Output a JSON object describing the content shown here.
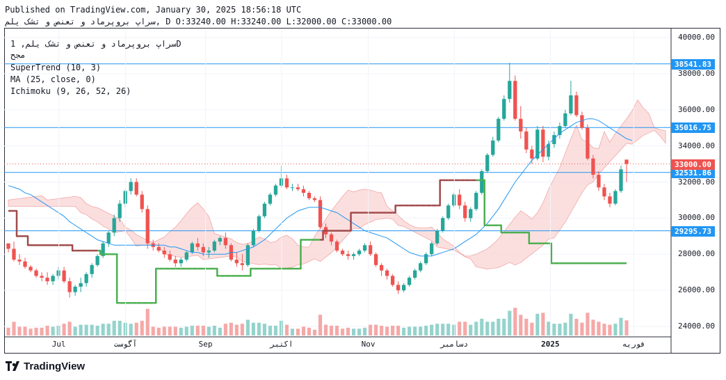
{
  "header": {
    "published": "Published on TradingView.com, January 30, 2025 18:56:18 UTC",
    "symbol_line": "سراپ بروپرماد و تعنص و تشک یلم, D O:33240.00 H:33240.00 L:32000.00 C:33000.00"
  },
  "legend": {
    "symbol": "سراپ بروپرماد و تعنص و تشک یلم, 1D",
    "exchange": "مجح",
    "supertrend": "SuperTrend (10, 3)",
    "ma": "MA (25, close, 0)",
    "ichimoku": "Ichimoku (9, 26, 52, 26)"
  },
  "brand": "TradingView",
  "colors": {
    "up": "#26a69a",
    "down": "#ef5350",
    "supertrend_up": "#4caf50",
    "supertrend_down": "#a04a4a",
    "ma": "#2196f3",
    "hline": "#2196f3",
    "last_price": "#ef5350",
    "cloud_bull": "#d7efd7",
    "cloud_bear": "#f9d4d4"
  },
  "chart_data": {
    "type": "candlestick",
    "ylim": [
      23500,
      40500
    ],
    "y_ticks": [
      "24000.00",
      "26000.00",
      "28000.00",
      "30000.00",
      "32000.00",
      "34000.00",
      "36000.00",
      "38000.00",
      "40000.00"
    ],
    "x_ticks": [
      {
        "label": "Jul",
        "pos": 0.082,
        "bold": false
      },
      {
        "label": "آگوست",
        "pos": 0.182,
        "bold": false
      },
      {
        "label": "Sep",
        "pos": 0.302,
        "bold": false
      },
      {
        "label": "اکتبر",
        "pos": 0.416,
        "bold": false
      },
      {
        "label": "Nov",
        "pos": 0.546,
        "bold": false
      },
      {
        "label": "دسامبر",
        "pos": 0.675,
        "bold": false
      },
      {
        "label": "2025",
        "pos": 0.819,
        "bold": true
      },
      {
        "label": "فوریه",
        "pos": 0.944,
        "bold": false
      }
    ],
    "horizontal_levels": [
      38541.83,
      35016.75,
      32531.86,
      29295.73
    ],
    "horizontal_level_labels": [
      "38541.83",
      "35016.75",
      "32531.86",
      "29295.73"
    ],
    "last_price": 33000.0,
    "last_price_label": "33000.00",
    "candles": [
      [
        28600,
        28600,
        28100,
        28300
      ],
      [
        28300,
        28700,
        27600,
        27700
      ],
      [
        27700,
        28000,
        27400,
        27600
      ],
      [
        27600,
        27800,
        27200,
        27300
      ],
      [
        27300,
        27400,
        27000,
        27100
      ],
      [
        27100,
        27200,
        26700,
        26800
      ],
      [
        26800,
        27000,
        26500,
        26700
      ],
      [
        26700,
        27000,
        26300,
        26500
      ],
      [
        26500,
        26900,
        26300,
        26800
      ],
      [
        26800,
        27300,
        26600,
        27100
      ],
      [
        27100,
        27300,
        26400,
        26500
      ],
      [
        26500,
        26700,
        25600,
        25900
      ],
      [
        25900,
        26300,
        25700,
        26200
      ],
      [
        26200,
        26700,
        25900,
        26400
      ],
      [
        26400,
        27000,
        26200,
        26900
      ],
      [
        26900,
        27500,
        26700,
        27400
      ],
      [
        27400,
        28000,
        27300,
        27900
      ],
      [
        27900,
        28700,
        27800,
        28600
      ],
      [
        28600,
        29300,
        28400,
        29200
      ],
      [
        29200,
        30200,
        29000,
        30000
      ],
      [
        30000,
        31000,
        29800,
        30800
      ],
      [
        30800,
        31600,
        30600,
        31500
      ],
      [
        31500,
        32200,
        31300,
        32000
      ],
      [
        32000,
        32200,
        31200,
        31300
      ],
      [
        31300,
        31500,
        30300,
        30500
      ],
      [
        30500,
        30700,
        28300,
        28600
      ],
      [
        28600,
        28800,
        28200,
        28400
      ],
      [
        28400,
        28600,
        28100,
        28200
      ],
      [
        28200,
        28400,
        27800,
        28000
      ],
      [
        28000,
        28200,
        27600,
        27700
      ],
      [
        27700,
        27900,
        27300,
        27500
      ],
      [
        27500,
        27800,
        27300,
        27700
      ],
      [
        27700,
        28200,
        27600,
        28100
      ],
      [
        28100,
        28700,
        28000,
        28600
      ],
      [
        28600,
        28900,
        28200,
        28400
      ],
      [
        28400,
        28600,
        27900,
        28100
      ],
      [
        28100,
        28400,
        27800,
        28200
      ],
      [
        28200,
        28800,
        28100,
        28700
      ],
      [
        28700,
        29000,
        28500,
        28900
      ],
      [
        28900,
        29200,
        28300,
        28500
      ],
      [
        28500,
        28600,
        27600,
        27700
      ],
      [
        27700,
        28100,
        27300,
        27500
      ],
      [
        27500,
        28000,
        27100,
        27400
      ],
      [
        27400,
        28600,
        27300,
        28500
      ],
      [
        28500,
        29400,
        28400,
        29300
      ],
      [
        29300,
        30200,
        29200,
        30100
      ],
      [
        30100,
        30900,
        30000,
        30800
      ],
      [
        30800,
        31400,
        30700,
        31300
      ],
      [
        31300,
        31900,
        31200,
        31800
      ],
      [
        31800,
        32900,
        31700,
        32200
      ],
      [
        32200,
        32400,
        31600,
        31700
      ],
      [
        31700,
        31900,
        31500,
        31700
      ],
      [
        31700,
        31900,
        31500,
        31600
      ],
      [
        31600,
        31800,
        31200,
        31400
      ],
      [
        31400,
        31500,
        31000,
        31100
      ],
      [
        31100,
        31200,
        30900,
        31000
      ],
      [
        31000,
        31200,
        29400,
        29500
      ],
      [
        29500,
        29700,
        28900,
        29100
      ],
      [
        29100,
        29200,
        28500,
        28700
      ],
      [
        28700,
        28800,
        28100,
        28200
      ],
      [
        28200,
        28300,
        27900,
        28000
      ],
      [
        28000,
        28200,
        27700,
        27900
      ],
      [
        27900,
        28100,
        27700,
        28000
      ],
      [
        28000,
        28300,
        27900,
        28200
      ],
      [
        28200,
        28600,
        28100,
        28500
      ],
      [
        28500,
        28700,
        27900,
        28000
      ],
      [
        28000,
        28100,
        27300,
        27400
      ],
      [
        27400,
        27500,
        26800,
        27100
      ],
      [
        27100,
        27200,
        26600,
        26800
      ],
      [
        26800,
        26900,
        26200,
        26300
      ],
      [
        26300,
        26500,
        25800,
        26000
      ],
      [
        26000,
        26400,
        25900,
        26300
      ],
      [
        26300,
        26800,
        26200,
        26700
      ],
      [
        26700,
        27200,
        26600,
        27100
      ],
      [
        27100,
        27600,
        27000,
        27500
      ],
      [
        27500,
        28100,
        27400,
        28000
      ],
      [
        28000,
        28700,
        27900,
        28600
      ],
      [
        28600,
        29400,
        28500,
        29300
      ],
      [
        29300,
        30100,
        29200,
        30000
      ],
      [
        30000,
        30800,
        29900,
        30700
      ],
      [
        30700,
        31400,
        30600,
        31300
      ],
      [
        31300,
        31600,
        30500,
        30700
      ],
      [
        30700,
        30900,
        29800,
        30000
      ],
      [
        30000,
        30600,
        29800,
        30500
      ],
      [
        30500,
        31500,
        30400,
        31400
      ],
      [
        31400,
        32700,
        31300,
        32600
      ],
      [
        32600,
        33600,
        32500,
        33500
      ],
      [
        33500,
        34500,
        33400,
        34300
      ],
      [
        34300,
        35600,
        34200,
        35500
      ],
      [
        35500,
        36800,
        35400,
        36600
      ],
      [
        36600,
        38600,
        36400,
        37600
      ],
      [
        37600,
        37900,
        35400,
        35500
      ],
      [
        35500,
        36200,
        34400,
        34800
      ],
      [
        34800,
        35000,
        33600,
        33800
      ],
      [
        33800,
        34000,
        33000,
        33300
      ],
      [
        33300,
        35100,
        33200,
        34900
      ],
      [
        34900,
        35100,
        33100,
        33400
      ],
      [
        33400,
        34300,
        33200,
        34100
      ],
      [
        34100,
        34800,
        33900,
        34600
      ],
      [
        34600,
        35300,
        34400,
        35100
      ],
      [
        35100,
        36000,
        35000,
        35800
      ],
      [
        35800,
        37600,
        35700,
        36800
      ],
      [
        36800,
        37000,
        35600,
        35700
      ],
      [
        35700,
        35900,
        34900,
        35000
      ],
      [
        35000,
        35200,
        33200,
        33300
      ],
      [
        33300,
        33500,
        32200,
        32400
      ],
      [
        32400,
        32600,
        31500,
        31700
      ],
      [
        31700,
        31900,
        31000,
        31200
      ],
      [
        31200,
        31400,
        30600,
        30800
      ],
      [
        30800,
        31600,
        30700,
        31500
      ],
      [
        31500,
        32900,
        31400,
        32700
      ],
      [
        33240,
        33240,
        32000,
        33000
      ]
    ],
    "ma": [
      31800,
      31700,
      31600,
      31400,
      31300,
      31100,
      30900,
      30700,
      30500,
      30300,
      30100,
      29800,
      29600,
      29400,
      29200,
      29000,
      28800,
      28700,
      28600,
      28500,
      28500,
      28500,
      28500,
      28500,
      28500,
      28500,
      28500,
      28500,
      28500,
      28400,
      28400,
      28300,
      28200,
      28100,
      28100,
      28000,
      28000,
      28000,
      28000,
      28000,
      28100,
      28100,
      28200,
      28300,
      28400,
      28600,
      28800,
      29100,
      29400,
      29700,
      30000,
      30200,
      30400,
      30500,
      30600,
      30600,
      30600,
      30500,
      30400,
      30300,
      30100,
      29900,
      29700,
      29500,
      29300,
      29200,
      29100,
      29000,
      28900,
      28700,
      28500,
      28300,
      28100,
      28000,
      27900,
      27900,
      27900,
      28000,
      28100,
      28200,
      28300,
      28500,
      28700,
      28900,
      29100,
      29400,
      29700,
      30100,
      30500,
      31000,
      31500,
      32000,
      32400,
      32800,
      33200,
      33500,
      33800,
      34100,
      34400,
      34700,
      34900,
      35100,
      35300,
      35400,
      35500,
      35500,
      35400,
      35200,
      35000,
      34800,
      34600,
      34400,
      34300
    ],
    "supertrend": [
      30400,
      30400,
      29000,
      29000,
      28500,
      28500,
      28500,
      28500,
      28500,
      28500,
      28500,
      28500,
      28200,
      28200,
      28200,
      28200,
      28200,
      28000,
      28000,
      28000,
      25300,
      25300,
      25300,
      25300,
      25300,
      25300,
      25300,
      27200,
      27200,
      27200,
      27200,
      27200,
      27200,
      27200,
      27200,
      27200,
      27200,
      27200,
      26800,
      26800,
      26800,
      26800,
      26800,
      26800,
      27200,
      27200,
      27200,
      27200,
      27200,
      27200,
      27200,
      27200,
      27200,
      28800,
      28800,
      28800,
      28800,
      29300,
      29300,
      29300,
      29300,
      29300,
      30300,
      30300,
      30300,
      30300,
      30300,
      30300,
      30300,
      30300,
      30700,
      30700,
      30700,
      30700,
      30700,
      30700,
      30700,
      30700,
      32100,
      32100,
      32100,
      32100,
      32100,
      32100,
      32100,
      32100,
      29600,
      29600,
      29600,
      29200,
      29200,
      29200,
      29200,
      29200,
      28600,
      28600,
      28600,
      28600,
      27500,
      27500,
      27500,
      27500,
      27500,
      27500,
      27500,
      27500,
      27500,
      27500,
      27500,
      27500,
      27500,
      27500,
      27500
    ]
  }
}
